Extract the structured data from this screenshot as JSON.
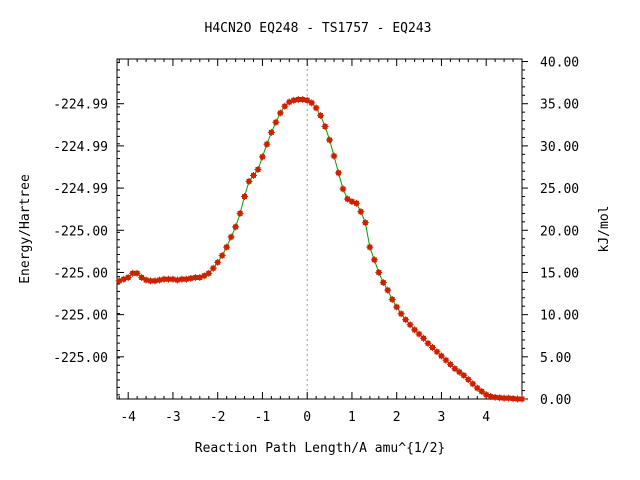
{
  "chart_data": {
    "type": "line",
    "title": "H4CN2O   EQ248 - TS1757 - EQ243",
    "xlabel": "Reaction Path Length/A amu^{1/2}",
    "ylabel_left": "Energy/Hartree",
    "ylabel_right": "kJ/mol",
    "xlim": [
      -4.25,
      4.8
    ],
    "ylim_kjmol": [
      0,
      40
    ],
    "x_ticks": [
      -4,
      -3,
      -2,
      -1,
      0,
      1,
      2,
      3,
      4
    ],
    "x_tick_labels": [
      "-4",
      "-3",
      "-2",
      "-1",
      "0",
      "1",
      "2",
      "3",
      "4"
    ],
    "right_ticks": [
      0,
      5,
      10,
      15,
      20,
      25,
      30,
      35,
      40
    ],
    "right_tick_labels": [
      "0.00",
      "5.00",
      "10.00",
      "15.00",
      "20.00",
      "25.00",
      "30.00",
      "35.00",
      "40.00"
    ],
    "left_ticks_kjmol": [
      5,
      10,
      15,
      20,
      25,
      30,
      35
    ],
    "left_tick_labels": [
      "-225.00",
      "-225.00",
      "-225.00",
      "-225.00",
      "-224.99",
      "-224.99",
      "-224.99"
    ],
    "ts_marker_x": 0,
    "grid": false,
    "series": [
      {
        "line_color": "#00a000",
        "marker_color": "#cc2200",
        "x": [
          -4.2,
          -4.1,
          -4.0,
          -3.9,
          -3.8,
          -3.7,
          -3.6,
          -3.5,
          -3.4,
          -3.3,
          -3.2,
          -3.1,
          -3.0,
          -2.9,
          -2.8,
          -2.7,
          -2.6,
          -2.5,
          -2.4,
          -2.3,
          -2.2,
          -2.1,
          -2.0,
          -1.9,
          -1.8,
          -1.7,
          -1.6,
          -1.5,
          -1.4,
          -1.3,
          -1.2,
          -1.1,
          -1.0,
          -0.9,
          -0.8,
          -0.7,
          -0.6,
          -0.5,
          -0.4,
          -0.3,
          -0.2,
          -0.1,
          0.0,
          0.1,
          0.2,
          0.3,
          0.4,
          0.5,
          0.6,
          0.7,
          0.8,
          0.9,
          1.0,
          1.1,
          1.2,
          1.3,
          1.4,
          1.5,
          1.6,
          1.7,
          1.8,
          1.9,
          2.0,
          2.1,
          2.2,
          2.3,
          2.4,
          2.5,
          2.6,
          2.7,
          2.8,
          2.9,
          3.0,
          3.1,
          3.2,
          3.3,
          3.4,
          3.5,
          3.6,
          3.7,
          3.8,
          3.9,
          4.0,
          4.1,
          4.2,
          4.3,
          4.4,
          4.5,
          4.6,
          4.7,
          4.8
        ],
        "y": [
          14.0,
          14.2,
          14.4,
          14.9,
          14.9,
          14.4,
          14.1,
          14.0,
          14.0,
          14.1,
          14.2,
          14.2,
          14.2,
          14.1,
          14.2,
          14.2,
          14.3,
          14.4,
          14.4,
          14.6,
          14.9,
          15.5,
          16.2,
          17.0,
          18.0,
          19.2,
          20.4,
          22.0,
          24.0,
          25.8,
          26.5,
          27.2,
          28.7,
          30.2,
          31.6,
          32.8,
          33.9,
          34.7,
          35.2,
          35.4,
          35.5,
          35.5,
          35.4,
          35.1,
          34.5,
          33.6,
          32.3,
          30.7,
          28.8,
          26.8,
          24.9,
          23.7,
          23.4,
          23.2,
          22.2,
          20.9,
          18.0,
          16.5,
          15.0,
          13.8,
          12.9,
          11.8,
          10.9,
          10.1,
          9.4,
          8.8,
          8.2,
          7.7,
          7.2,
          6.6,
          6.1,
          5.6,
          5.1,
          4.6,
          4.1,
          3.6,
          3.2,
          2.8,
          2.3,
          1.8,
          1.3,
          0.9,
          0.5,
          0.3,
          0.2,
          0.15,
          0.1,
          0.1,
          0.05,
          0.0,
          0.0
        ]
      }
    ]
  }
}
